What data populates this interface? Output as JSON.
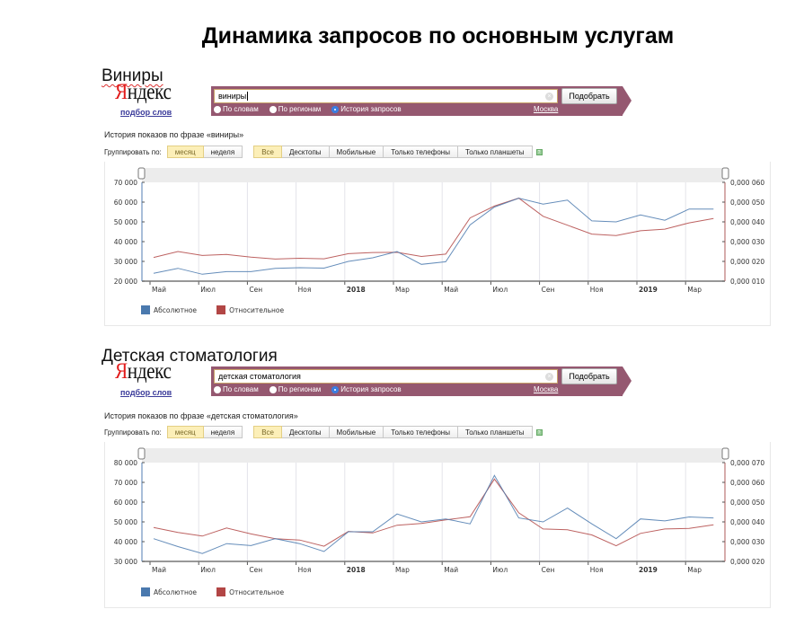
{
  "page_title": "Динамика запросов по основным услугам",
  "colors": {
    "absolute": "#4a79ae",
    "relative": "#b24645",
    "bar": "#955870",
    "active_btn": "#fcefb8"
  },
  "common": {
    "logo": "Яндекс",
    "logo_first": "Я",
    "logo_rest": "ндекс",
    "podbor": "подбор слов",
    "search_button": "Подобрать",
    "radio_words": "По словам",
    "radio_regions": "По регионам",
    "radio_history": "История запросов",
    "region": "Москва",
    "group_by": "Группировать по:",
    "group_month": "месяц",
    "group_week": "неделя",
    "dev_all": "Все",
    "dev_desktop": "Десктопы",
    "dev_mobile": "Мобильные",
    "dev_phones": "Только телефоны",
    "dev_tablets": "Только планшеты",
    "legend_abs": "Абсолютное",
    "legend_rel": "Относительное",
    "clear_icon": "×",
    "help_icon": "?"
  },
  "sections": [
    {
      "label": "Виниры",
      "query": "виниры",
      "history_title": "История показов по фразе «виниры»"
    },
    {
      "label": "Детская стоматология",
      "query": "детская стоматология",
      "history_title": "История показов по фразе «детская стоматология»"
    }
  ],
  "chart_data": [
    {
      "type": "line",
      "title": "История показов по фразе «виниры»",
      "x": [
        "2017-05",
        "2017-06",
        "2017-07",
        "2017-08",
        "2017-09",
        "2017-10",
        "2017-11",
        "2017-12",
        "2018-01",
        "2018-02",
        "2018-03",
        "2018-04",
        "2018-05",
        "2018-06",
        "2018-07",
        "2018-08",
        "2018-09",
        "2018-10",
        "2018-11",
        "2018-12",
        "2019-01",
        "2019-02",
        "2019-03",
        "2019-04"
      ],
      "x_tick_labels": [
        "Май",
        "Июл",
        "Сен",
        "Ноя",
        "2018",
        "Мар",
        "Май",
        "Июл",
        "Сен",
        "Ноя",
        "2019",
        "Мар"
      ],
      "series": [
        {
          "name": "Абсолютное",
          "axis": "left",
          "values": [
            24000,
            26500,
            23500,
            24800,
            24800,
            26500,
            26800,
            26600,
            30000,
            31800,
            35000,
            28500,
            29800,
            48500,
            57500,
            62000,
            59000,
            61000,
            50500,
            50000,
            53500,
            50800,
            56500,
            56500
          ]
        },
        {
          "name": "Относительное",
          "axis": "right",
          "values": [
            2.2e-05,
            2.5e-05,
            2.3e-05,
            2.35e-05,
            2.22e-05,
            2.12e-05,
            2.16e-05,
            2.13e-05,
            2.39e-05,
            2.45e-05,
            2.46e-05,
            2.25e-05,
            2.37e-05,
            4.2e-05,
            4.8e-05,
            5.2e-05,
            4.28e-05,
            3.83e-05,
            3.38e-05,
            3.31e-05,
            3.55e-05,
            3.63e-05,
            3.95e-05,
            4.17e-05
          ]
        }
      ],
      "y_left": {
        "ticks": [
          "20 000",
          "30 000",
          "40 000",
          "50 000",
          "60 000",
          "70 000"
        ],
        "ylim": [
          20000,
          70000
        ]
      },
      "y_right": {
        "ticks": [
          "0,000 010",
          "0,000 020",
          "0,000 030",
          "0,000 040",
          "0,000 050",
          "0,000 060"
        ],
        "ylim": [
          1e-05,
          6e-05
        ]
      },
      "legend_position": "bottom-left",
      "grid": true
    },
    {
      "type": "line",
      "title": "История показов по фразе «детская стоматология»",
      "x": [
        "2017-05",
        "2017-06",
        "2017-07",
        "2017-08",
        "2017-09",
        "2017-10",
        "2017-11",
        "2017-12",
        "2018-01",
        "2018-02",
        "2018-03",
        "2018-04",
        "2018-05",
        "2018-06",
        "2018-07",
        "2018-08",
        "2018-09",
        "2018-10",
        "2018-11",
        "2018-12",
        "2019-01",
        "2019-02",
        "2019-03",
        "2019-04"
      ],
      "x_tick_labels": [
        "Май",
        "Июл",
        "Сен",
        "Ноя",
        "2018",
        "Мар",
        "Май",
        "Июл",
        "Сен",
        "Ноя",
        "2019",
        "Мар"
      ],
      "series": [
        {
          "name": "Абсолютное",
          "axis": "left",
          "values": [
            41500,
            37500,
            34000,
            39000,
            38000,
            41500,
            39000,
            35000,
            45000,
            45000,
            54000,
            50000,
            51500,
            49000,
            73500,
            52000,
            50000,
            57000,
            49000,
            41500,
            51500,
            50500,
            52500,
            52000
          ]
        },
        {
          "name": "Относительное",
          "axis": "right",
          "values": [
            3.72e-05,
            3.47e-05,
            3.28e-05,
            3.69e-05,
            3.39e-05,
            3.15e-05,
            3.08e-05,
            2.77e-05,
            3.52e-05,
            3.44e-05,
            3.83e-05,
            3.92e-05,
            4.1e-05,
            4.26e-05,
            6.17e-05,
            4.46e-05,
            3.64e-05,
            3.6e-05,
            3.34e-05,
            2.79e-05,
            3.42e-05,
            3.64e-05,
            3.67e-05,
            3.85e-05
          ]
        }
      ],
      "y_left": {
        "ticks": [
          "30 000",
          "40 000",
          "50 000",
          "60 000",
          "70 000",
          "80 000"
        ],
        "ylim": [
          30000,
          80000
        ]
      },
      "y_right": {
        "ticks": [
          "0,000 020",
          "0,000 030",
          "0,000 040",
          "0,000 050",
          "0,000 060",
          "0,000 070"
        ],
        "ylim": [
          2e-05,
          7e-05
        ]
      },
      "legend_position": "bottom-left",
      "grid": true
    }
  ]
}
